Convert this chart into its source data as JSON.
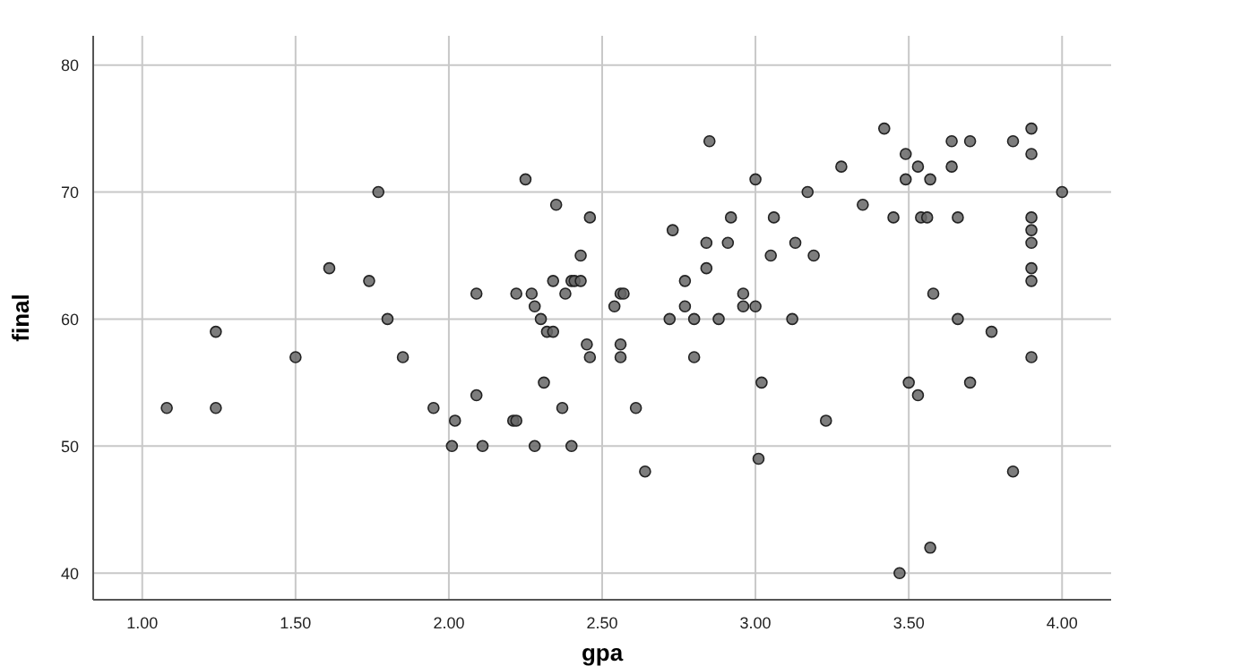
{
  "chart_data": {
    "type": "scatter",
    "xlabel": "gpa",
    "ylabel": "final",
    "xlim": [
      0.84,
      4.16
    ],
    "ylim": [
      37.9,
      82.3
    ],
    "xticks": [
      {
        "value": 1,
        "label": "1.00"
      },
      {
        "value": 1.5,
        "label": "1.50"
      },
      {
        "value": 2,
        "label": "2.00"
      },
      {
        "value": 2.5,
        "label": "2.50"
      },
      {
        "value": 3,
        "label": "3.00"
      },
      {
        "value": 3.5,
        "label": "3.50"
      },
      {
        "value": 4,
        "label": "4.00"
      }
    ],
    "yticks": [
      40,
      50,
      60,
      70,
      80
    ],
    "grid": true,
    "marker": "circle",
    "series": [
      {
        "color": "#666666",
        "x": [
          1.08,
          1.24,
          1.24,
          1.5,
          1.61,
          1.74,
          1.77,
          1.8,
          1.85,
          1.95,
          2.02,
          2.01,
          2.09,
          2.09,
          2.11,
          2.21,
          2.22,
          2.22,
          2.25,
          2.27,
          2.28,
          2.28,
          2.3,
          2.31,
          2.32,
          2.34,
          2.34,
          2.35,
          2.37,
          2.38,
          2.4,
          2.41,
          2.43,
          2.4,
          2.43,
          2.45,
          2.46,
          2.46,
          2.54,
          2.56,
          2.57,
          2.56,
          2.56,
          2.61,
          2.64,
          2.72,
          2.73,
          2.77,
          2.77,
          2.8,
          2.8,
          2.84,
          2.84,
          2.85,
          2.88,
          2.91,
          2.92,
          2.96,
          2.96,
          3.0,
          3.0,
          3.02,
          3.01,
          3.05,
          3.06,
          3.12,
          3.13,
          3.17,
          3.19,
          3.23,
          3.28,
          3.35,
          3.42,
          3.45,
          3.47,
          3.49,
          3.49,
          3.5,
          3.53,
          3.53,
          3.54,
          3.56,
          3.57,
          3.58,
          3.57,
          3.64,
          3.64,
          3.66,
          3.66,
          3.7,
          3.7,
          3.77,
          3.84,
          3.84,
          3.9,
          3.9,
          3.9,
          3.9,
          3.9,
          3.9,
          3.9,
          3.9,
          4.0
        ],
        "values": [
          53,
          59,
          53,
          57,
          64,
          63,
          70,
          60,
          57,
          53,
          52,
          50,
          54,
          62,
          50,
          52,
          52,
          62,
          71,
          62,
          61,
          50,
          60,
          55,
          59,
          59,
          63,
          69,
          53,
          62,
          63,
          63,
          63,
          50,
          65,
          58,
          68,
          57,
          61,
          62,
          62,
          58,
          57,
          53,
          48,
          60,
          67,
          63,
          61,
          60,
          57,
          64,
          66,
          74,
          60,
          66,
          68,
          62,
          61,
          61,
          71,
          55,
          49,
          65,
          68,
          60,
          66,
          70,
          65,
          52,
          72,
          69,
          75,
          68,
          40,
          73,
          71,
          55,
          72,
          54,
          68,
          68,
          71,
          62,
          42,
          74,
          72,
          68,
          60,
          74,
          55,
          59,
          74,
          48,
          75,
          73,
          68,
          67,
          66,
          64,
          63,
          57,
          70
        ]
      }
    ]
  }
}
